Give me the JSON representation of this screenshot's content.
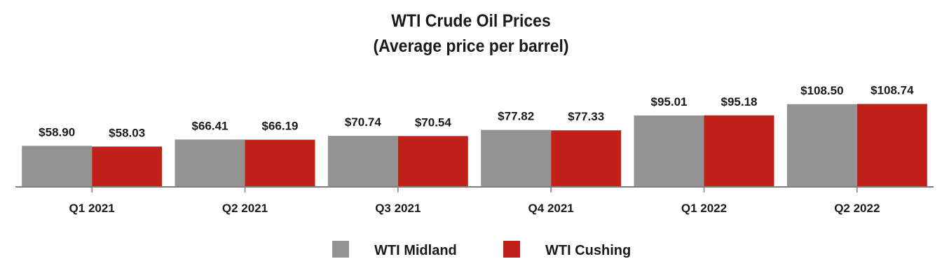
{
  "chart_data": {
    "type": "bar",
    "title": "WTI Crude Oil Prices",
    "subtitle": "(Average price per barrel)",
    "categories": [
      "Q1 2021",
      "Q2 2021",
      "Q3 2021",
      "Q4 2021",
      "Q1 2022",
      "Q2 2022"
    ],
    "series": [
      {
        "name": "WTI Midland",
        "color": "#939393",
        "values": [
          58.9,
          66.41,
          70.74,
          77.82,
          95.01,
          108.5
        ],
        "labels": [
          "$58.90",
          "$66.41",
          "$70.74",
          "$77.82",
          "$95.01",
          "$108.50"
        ]
      },
      {
        "name": "WTI Cushing",
        "color": "#c0211a",
        "values": [
          58.03,
          66.19,
          70.54,
          77.33,
          95.18,
          108.74
        ],
        "labels": [
          "$58.03",
          "$66.19",
          "$70.54",
          "$77.33",
          "$95.18",
          "$108.74"
        ]
      }
    ],
    "ylim": [
      0,
      110
    ],
    "grid": false,
    "legend": "bottom"
  }
}
